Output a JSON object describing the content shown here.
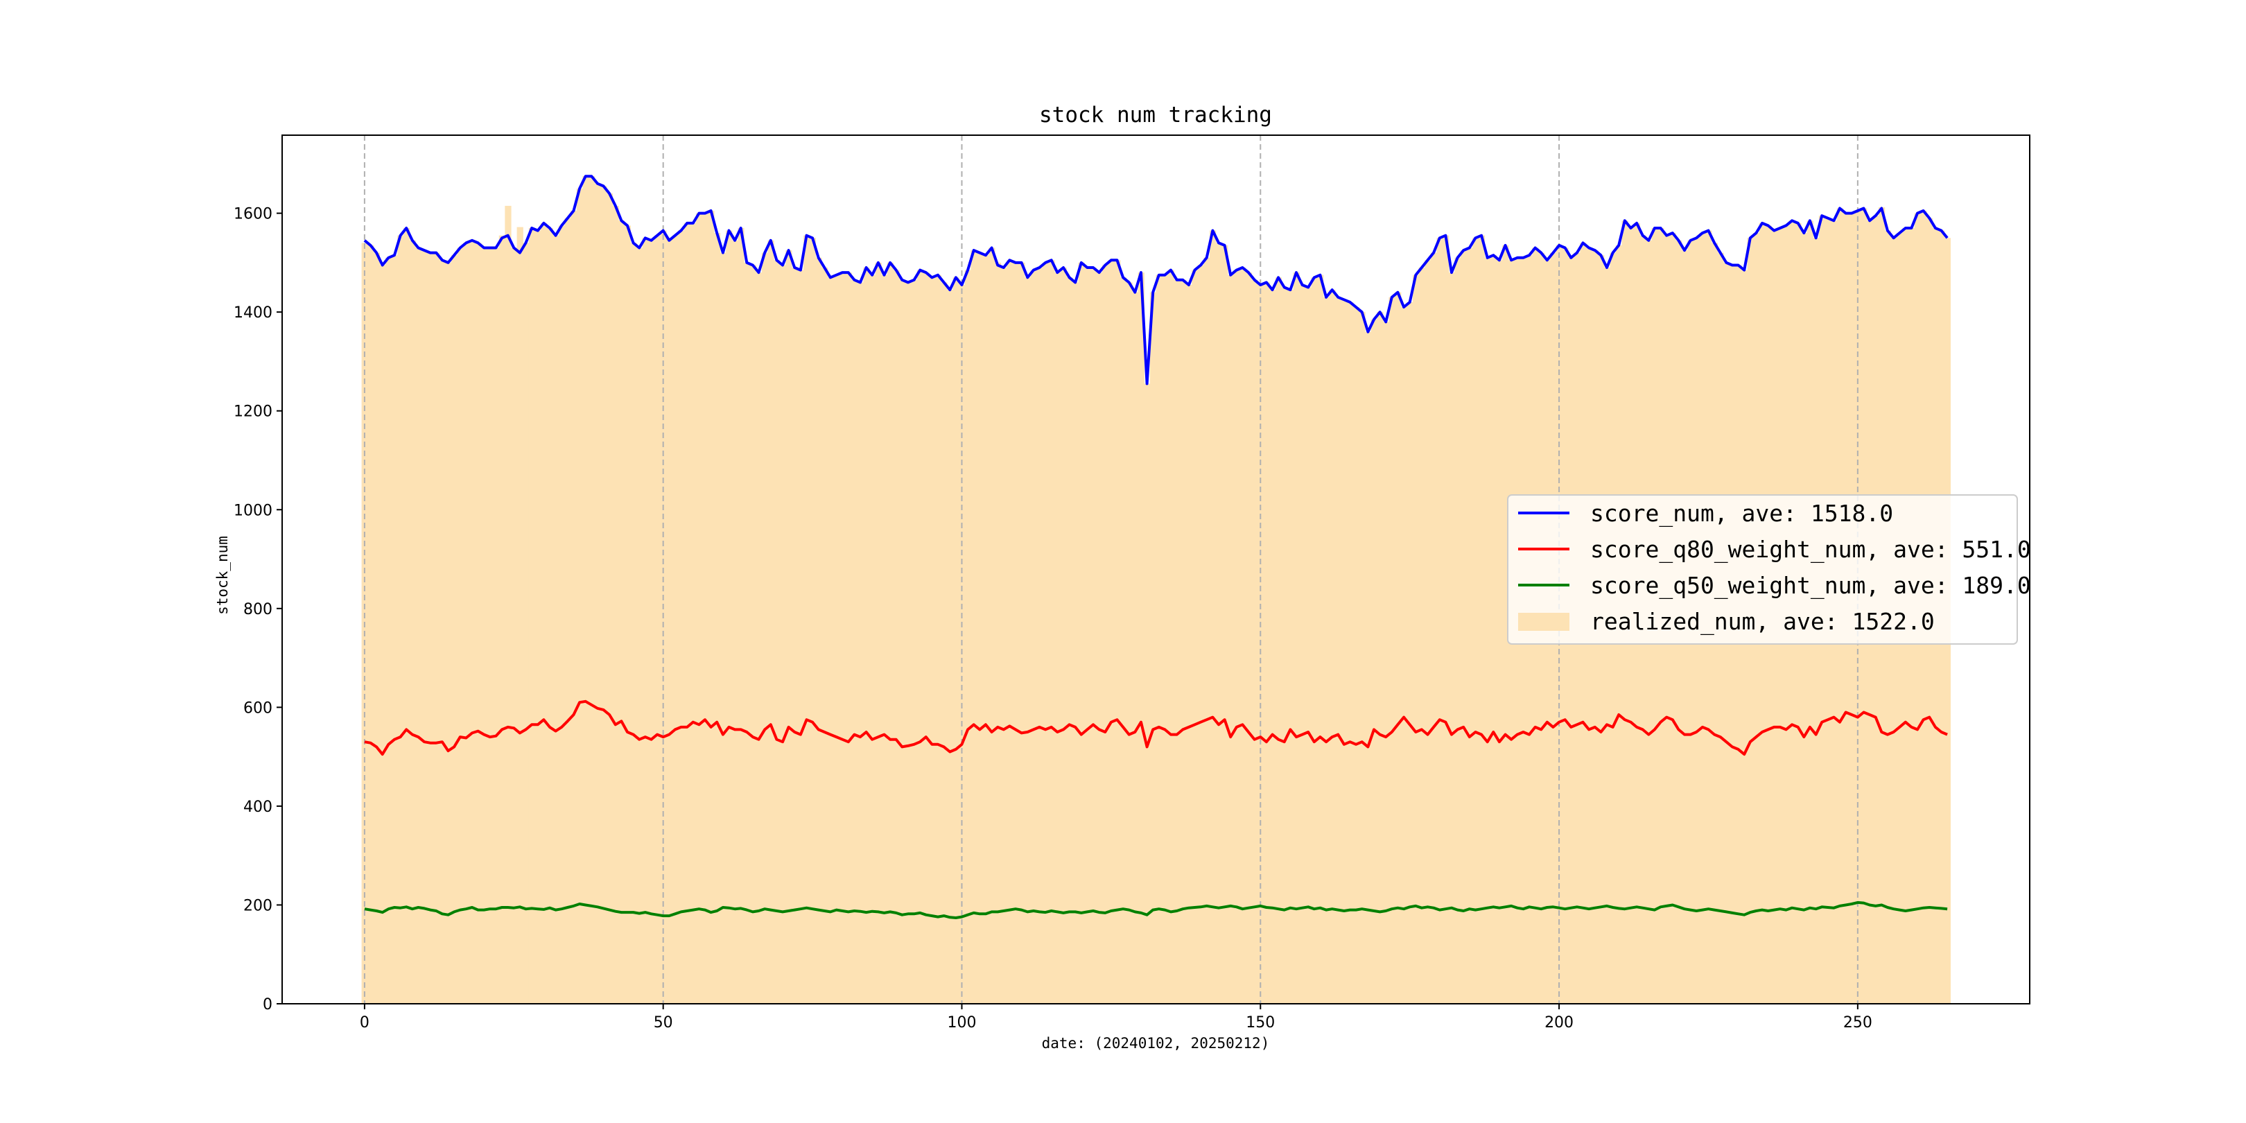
{
  "chart_data": {
    "type": "line",
    "title": "stock num tracking",
    "xlabel": "date: (20240102, 20250212)",
    "ylabel": "stock_num",
    "xlim": [
      -13.8,
      278.8
    ],
    "ylim": [
      0,
      1758
    ],
    "xticks": [
      0,
      50,
      100,
      150,
      200,
      250
    ],
    "yticks": [
      0,
      200,
      400,
      600,
      800,
      1000,
      1200,
      1400,
      1600
    ],
    "grid": "vertical dashed at x ticks",
    "legend_position": "center-right",
    "colors": {
      "score_num": "#0000ff",
      "score_q80_weight_num": "#ff0000",
      "score_q50_weight_num": "#008000",
      "realized_num": "#fde2b4"
    },
    "series": [
      {
        "name": "score_num",
        "legend": "score_num, ave: 1518.0",
        "kind": "line",
        "values": [
          1545,
          1535,
          1520,
          1495,
          1510,
          1515,
          1555,
          1570,
          1545,
          1530,
          1525,
          1520,
          1520,
          1505,
          1500,
          1515,
          1530,
          1540,
          1545,
          1540,
          1530,
          1530,
          1530,
          1550,
          1555,
          1530,
          1520,
          1540,
          1570,
          1565,
          1580,
          1570,
          1555,
          1575,
          1590,
          1605,
          1650,
          1675,
          1675,
          1660,
          1655,
          1640,
          1615,
          1585,
          1575,
          1540,
          1530,
          1550,
          1545,
          1555,
          1565,
          1545,
          1555,
          1565,
          1580,
          1580,
          1600,
          1600,
          1605,
          1560,
          1520,
          1565,
          1545,
          1570,
          1500,
          1495,
          1480,
          1520,
          1545,
          1505,
          1495,
          1525,
          1490,
          1485,
          1555,
          1550,
          1510,
          1490,
          1470,
          1475,
          1480,
          1480,
          1465,
          1460,
          1490,
          1475,
          1500,
          1475,
          1500,
          1485,
          1465,
          1460,
          1465,
          1485,
          1480,
          1470,
          1475,
          1460,
          1445,
          1470,
          1455,
          1485,
          1525,
          1520,
          1515,
          1530,
          1495,
          1490,
          1505,
          1500,
          1500,
          1470,
          1485,
          1490,
          1500,
          1505,
          1480,
          1490,
          1470,
          1460,
          1500,
          1490,
          1490,
          1480,
          1495,
          1505,
          1505,
          1470,
          1460,
          1440,
          1480,
          1255,
          1440,
          1475,
          1475,
          1485,
          1465,
          1465,
          1455,
          1485,
          1495,
          1510,
          1565,
          1540,
          1535,
          1475,
          1485,
          1490,
          1480,
          1465,
          1455,
          1460,
          1445,
          1470,
          1450,
          1445,
          1480,
          1455,
          1450,
          1470,
          1475,
          1430,
          1445,
          1430,
          1425,
          1420,
          1410,
          1400,
          1360,
          1385,
          1400,
          1380,
          1430,
          1440,
          1410,
          1420,
          1475,
          1490,
          1505,
          1520,
          1550,
          1555,
          1480,
          1510,
          1525,
          1530,
          1550,
          1555,
          1510,
          1515,
          1505,
          1535,
          1505,
          1510,
          1510,
          1515,
          1530,
          1520,
          1505,
          1520,
          1535,
          1530,
          1510,
          1520,
          1540,
          1530,
          1525,
          1515,
          1490,
          1520,
          1535,
          1585,
          1570,
          1580,
          1555,
          1545,
          1570,
          1570,
          1555,
          1560,
          1545,
          1525,
          1545,
          1550,
          1560,
          1565,
          1540,
          1520,
          1500,
          1495,
          1495,
          1485,
          1550,
          1560,
          1580,
          1575,
          1565,
          1570,
          1575,
          1585,
          1580,
          1560,
          1585,
          1550,
          1595,
          1590,
          1585,
          1610,
          1600,
          1600,
          1605,
          1610,
          1585,
          1595,
          1610,
          1565,
          1550,
          1560,
          1570,
          1570,
          1600,
          1605,
          1590,
          1570,
          1565,
          1550
        ]
      },
      {
        "name": "score_q80_weight_num",
        "legend": "score_q80_weight_num, ave: 551.0",
        "kind": "line",
        "values": [
          530,
          528,
          520,
          505,
          525,
          535,
          540,
          555,
          545,
          540,
          530,
          528,
          528,
          530,
          512,
          520,
          540,
          538,
          548,
          552,
          545,
          540,
          542,
          555,
          560,
          558,
          548,
          555,
          565,
          565,
          575,
          560,
          552,
          560,
          572,
          585,
          610,
          612,
          605,
          598,
          595,
          585,
          565,
          572,
          550,
          545,
          535,
          540,
          535,
          545,
          540,
          545,
          555,
          560,
          560,
          570,
          565,
          575,
          560,
          570,
          545,
          560,
          555,
          555,
          550,
          540,
          535,
          555,
          565,
          535,
          530,
          560,
          550,
          545,
          575,
          570,
          555,
          550,
          545,
          540,
          535,
          530,
          545,
          540,
          550,
          535,
          540,
          545,
          535,
          535,
          520,
          522,
          525,
          530,
          540,
          525,
          525,
          520,
          510,
          515,
          525,
          555,
          565,
          555,
          565,
          550,
          560,
          555,
          562,
          555,
          548,
          550,
          555,
          560,
          555,
          560,
          550,
          555,
          565,
          560,
          545,
          555,
          565,
          555,
          550,
          570,
          575,
          560,
          545,
          550,
          570,
          520,
          555,
          560,
          555,
          545,
          545,
          555,
          560,
          565,
          570,
          575,
          580,
          565,
          575,
          540,
          560,
          565,
          550,
          535,
          540,
          530,
          545,
          535,
          530,
          555,
          540,
          545,
          550,
          530,
          540,
          530,
          540,
          545,
          525,
          530,
          525,
          530,
          520,
          555,
          545,
          540,
          550,
          565,
          580,
          565,
          550,
          555,
          545,
          560,
          575,
          570,
          545,
          555,
          560,
          540,
          550,
          545,
          530,
          550,
          530,
          545,
          535,
          545,
          550,
          545,
          560,
          555,
          570,
          560,
          570,
          575,
          560,
          565,
          570,
          555,
          560,
          550,
          565,
          560,
          585,
          575,
          570,
          560,
          555,
          545,
          555,
          570,
          580,
          575,
          555,
          545,
          545,
          550,
          560,
          555,
          545,
          540,
          530,
          520,
          515,
          505,
          530,
          540,
          550,
          555,
          560,
          560,
          555,
          565,
          560,
          540,
          560,
          545,
          570,
          575,
          580,
          570,
          590,
          585,
          580,
          590,
          585,
          580,
          550,
          545,
          550,
          560,
          570,
          560,
          555,
          575,
          580,
          560,
          550,
          545
        ]
      },
      {
        "name": "score_q50_weight_num",
        "legend": "score_q50_weight_num, ave: 189.0",
        "kind": "line",
        "values": [
          192,
          190,
          188,
          185,
          192,
          195,
          194,
          196,
          192,
          195,
          193,
          190,
          188,
          182,
          180,
          186,
          190,
          192,
          195,
          190,
          190,
          192,
          192,
          195,
          195,
          194,
          196,
          192,
          193,
          192,
          191,
          194,
          190,
          192,
          195,
          198,
          202,
          200,
          198,
          196,
          193,
          190,
          187,
          185,
          185,
          185,
          183,
          185,
          182,
          180,
          178,
          178,
          182,
          186,
          188,
          190,
          192,
          190,
          185,
          188,
          195,
          194,
          192,
          193,
          190,
          186,
          188,
          192,
          190,
          188,
          186,
          188,
          190,
          192,
          194,
          192,
          190,
          188,
          186,
          190,
          188,
          186,
          188,
          187,
          185,
          187,
          186,
          184,
          186,
          184,
          180,
          182,
          182,
          184,
          180,
          178,
          176,
          178,
          175,
          174,
          176,
          180,
          184,
          182,
          182,
          186,
          186,
          188,
          190,
          192,
          190,
          186,
          188,
          186,
          185,
          188,
          186,
          184,
          186,
          186,
          184,
          186,
          188,
          185,
          184,
          188,
          190,
          192,
          190,
          186,
          184,
          180,
          190,
          192,
          190,
          186,
          188,
          192,
          194,
          195,
          196,
          198,
          196,
          194,
          196,
          198,
          196,
          192,
          194,
          196,
          198,
          195,
          194,
          192,
          190,
          194,
          192,
          194,
          196,
          192,
          194,
          190,
          192,
          190,
          188,
          190,
          190,
          192,
          190,
          188,
          186,
          188,
          192,
          194,
          192,
          196,
          198,
          194,
          196,
          194,
          190,
          192,
          194,
          190,
          188,
          192,
          190,
          192,
          194,
          196,
          194,
          196,
          198,
          194,
          192,
          196,
          194,
          192,
          195,
          196,
          194,
          192,
          194,
          196,
          194,
          192,
          194,
          196,
          198,
          195,
          193,
          192,
          194,
          196,
          194,
          192,
          190,
          196,
          198,
          200,
          196,
          192,
          190,
          188,
          190,
          192,
          190,
          188,
          186,
          184,
          182,
          180,
          185,
          188,
          190,
          188,
          190,
          192,
          190,
          194,
          192,
          190,
          194,
          192,
          196,
          195,
          194,
          198,
          200,
          202,
          205,
          204,
          200,
          198,
          200,
          195,
          192,
          190,
          188,
          190,
          192,
          194,
          195,
          194,
          193,
          192
        ]
      },
      {
        "name": "realized_num",
        "legend": "realized_num, ave: 1522.0",
        "kind": "bar",
        "values": [
          1540,
          1535,
          1520,
          1495,
          1510,
          1515,
          1555,
          1570,
          1545,
          1530,
          1525,
          1520,
          1520,
          1505,
          1500,
          1515,
          1530,
          1540,
          1545,
          1540,
          1530,
          1530,
          1530,
          1555,
          1615,
          1530,
          1572,
          1540,
          1570,
          1565,
          1580,
          1570,
          1555,
          1575,
          1590,
          1605,
          1650,
          1675,
          1675,
          1660,
          1655,
          1640,
          1615,
          1585,
          1575,
          1540,
          1530,
          1550,
          1545,
          1555,
          1565,
          1550,
          1555,
          1565,
          1580,
          1580,
          1600,
          1600,
          1605,
          1560,
          1520,
          1565,
          1545,
          1570,
          1500,
          1495,
          1480,
          1520,
          1545,
          1505,
          1495,
          1525,
          1490,
          1485,
          1555,
          1550,
          1510,
          1490,
          1470,
          1475,
          1480,
          1480,
          1465,
          1460,
          1490,
          1475,
          1500,
          1475,
          1500,
          1485,
          1465,
          1460,
          1465,
          1485,
          1480,
          1470,
          1475,
          1460,
          1445,
          1470,
          1455,
          1485,
          1525,
          1520,
          1515,
          1530,
          1500,
          1490,
          1505,
          1500,
          1500,
          1470,
          1485,
          1490,
          1500,
          1505,
          1480,
          1490,
          1470,
          1460,
          1500,
          1490,
          1490,
          1480,
          1495,
          1505,
          1505,
          1470,
          1460,
          1440,
          1480,
          1255,
          1440,
          1475,
          1475,
          1485,
          1465,
          1465,
          1455,
          1485,
          1495,
          1510,
          1565,
          1540,
          1535,
          1475,
          1485,
          1490,
          1480,
          1465,
          1455,
          1460,
          1445,
          1470,
          1450,
          1445,
          1480,
          1455,
          1450,
          1470,
          1475,
          1430,
          1445,
          1430,
          1425,
          1420,
          1410,
          1400,
          1360,
          1385,
          1400,
          1380,
          1430,
          1440,
          1410,
          1420,
          1475,
          1490,
          1505,
          1520,
          1550,
          1555,
          1480,
          1510,
          1525,
          1530,
          1550,
          1555,
          1510,
          1515,
          1505,
          1535,
          1505,
          1510,
          1510,
          1515,
          1530,
          1520,
          1505,
          1520,
          1535,
          1530,
          1510,
          1520,
          1540,
          1530,
          1525,
          1515,
          1490,
          1520,
          1535,
          1585,
          1570,
          1580,
          1555,
          1545,
          1570,
          1570,
          1555,
          1560,
          1545,
          1525,
          1545,
          1550,
          1560,
          1565,
          1540,
          1520,
          1500,
          1495,
          1495,
          1485,
          1550,
          1560,
          1580,
          1575,
          1565,
          1570,
          1575,
          1585,
          1580,
          1560,
          1585,
          1550,
          1595,
          1590,
          1585,
          1610,
          1600,
          1600,
          1605,
          1610,
          1585,
          1595,
          1612,
          1565,
          1550,
          1560,
          1570,
          1570,
          1600,
          1605,
          1590,
          1570,
          1565,
          1550
        ]
      }
    ]
  }
}
